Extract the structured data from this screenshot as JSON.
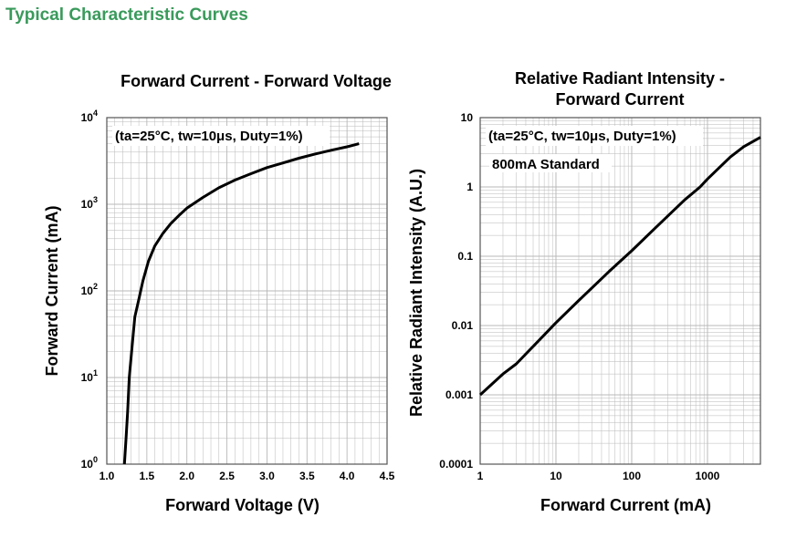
{
  "page": {
    "title": "Typical Characteristic Curves"
  },
  "colors": {
    "title": "#3a9a5b",
    "grid": "#b8b8b8",
    "curve": "#000000",
    "frame": "#555555"
  },
  "chart_data": [
    {
      "type": "line",
      "title": "Forward Current - Forward Voltage",
      "xlabel": "Forward Voltage (V)",
      "ylabel": "Forward Current (mA)",
      "annotation": "(ta=25°C, tw=10μs, Duty=1%)",
      "xscale": "linear",
      "yscale": "log",
      "xlim": [
        1.0,
        4.5
      ],
      "ylim": [
        1,
        10000
      ],
      "xticks": [
        "1.0",
        "1.5",
        "2.0",
        "2.5",
        "3.0",
        "3.5",
        "4.0",
        "4.5"
      ],
      "yticks": [
        {
          "base": "10",
          "exp": "0"
        },
        {
          "base": "10",
          "exp": "1"
        },
        {
          "base": "10",
          "exp": "2"
        },
        {
          "base": "10",
          "exp": "3"
        },
        {
          "base": "10",
          "exp": "4"
        }
      ],
      "grid": true,
      "series": [
        {
          "x": [
            1.22,
            1.24,
            1.26,
            1.28,
            1.31,
            1.35,
            1.4,
            1.45,
            1.52,
            1.6,
            1.7,
            1.8,
            1.9,
            2.0,
            2.2,
            2.4,
            2.6,
            2.8,
            3.0,
            3.2,
            3.4,
            3.6,
            3.8,
            4.0,
            4.15
          ],
          "y": [
            1,
            2,
            4,
            10,
            20,
            50,
            80,
            130,
            220,
            330,
            460,
            600,
            740,
            900,
            1200,
            1550,
            1900,
            2250,
            2650,
            3000,
            3400,
            3800,
            4200,
            4600,
            5000
          ]
        }
      ]
    },
    {
      "type": "line",
      "title": [
        "Relative Radiant Intensity -",
        "Forward Current"
      ],
      "xlabel": "Forward Current (mA)",
      "ylabel": "Relative Radiant Intensity (A.U.)",
      "annotation": "(ta=25°C, tw=10μs, Duty=1%)",
      "annotation2": "800mA Standard",
      "xscale": "log",
      "yscale": "log",
      "xlim": [
        1,
        5000
      ],
      "ylim": [
        0.0001,
        10
      ],
      "xticks": [
        {
          "value": 1,
          "label": "1"
        },
        {
          "value": 10,
          "label": "10"
        },
        {
          "value": 100,
          "label": "100"
        },
        {
          "value": 1000,
          "label": "1000"
        }
      ],
      "yticks": [
        {
          "value": 0.0001,
          "label": "0.0001"
        },
        {
          "value": 0.001,
          "label": "0.001"
        },
        {
          "value": 0.01,
          "label": "0.01"
        },
        {
          "value": 0.1,
          "label": "0.1"
        },
        {
          "value": 1,
          "label": "1"
        },
        {
          "value": 10,
          "label": "10"
        }
      ],
      "grid": true,
      "series": [
        {
          "x": [
            1,
            1.5,
            2,
            3,
            5,
            10,
            20,
            50,
            100,
            200,
            500,
            800,
            1000,
            2000,
            3000,
            5000
          ],
          "y": [
            0.001,
            0.0015,
            0.002,
            0.0028,
            0.005,
            0.011,
            0.023,
            0.06,
            0.12,
            0.25,
            0.65,
            1.0,
            1.3,
            2.7,
            3.8,
            5.2
          ]
        }
      ]
    }
  ]
}
